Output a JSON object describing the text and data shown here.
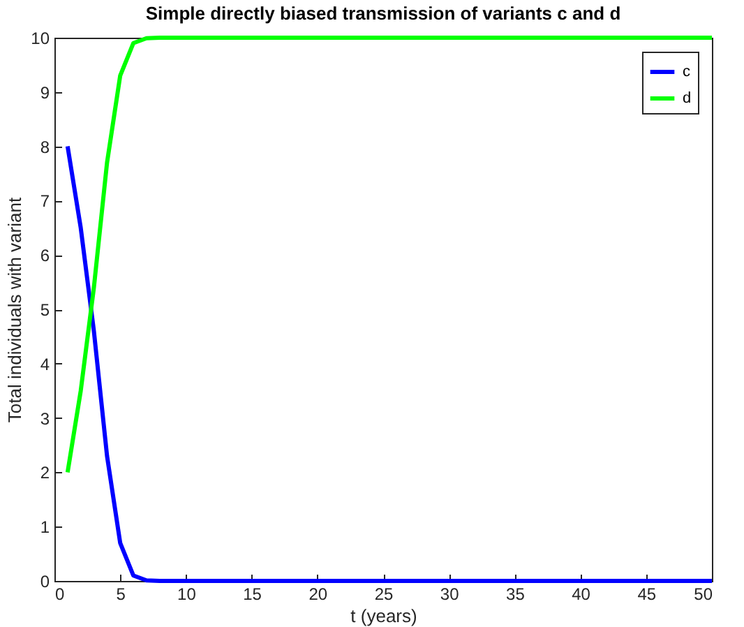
{
  "chart_data": {
    "type": "line",
    "title": "Simple directly biased transmission of variants c and d",
    "xlabel": "t (years)",
    "ylabel": "Total individuals with variant",
    "x": [
      1,
      2,
      3,
      4,
      5,
      6,
      7,
      8,
      9,
      10,
      11,
      12,
      13,
      14,
      15,
      16,
      17,
      18,
      19,
      20,
      21,
      22,
      23,
      24,
      25,
      26,
      27,
      28,
      29,
      30,
      31,
      32,
      33,
      34,
      35,
      36,
      37,
      38,
      39,
      40,
      41,
      42,
      43,
      44,
      45,
      46,
      47,
      48,
      49,
      50
    ],
    "series": [
      {
        "name": "c",
        "color": "#0000ff",
        "values": [
          8,
          6.5,
          4.6,
          2.3,
          0.7,
          0.1,
          0.01,
          0,
          0,
          0,
          0,
          0,
          0,
          0,
          0,
          0,
          0,
          0,
          0,
          0,
          0,
          0,
          0,
          0,
          0,
          0,
          0,
          0,
          0,
          0,
          0,
          0,
          0,
          0,
          0,
          0,
          0,
          0,
          0,
          0,
          0,
          0,
          0,
          0,
          0,
          0,
          0,
          0,
          0,
          0
        ]
      },
      {
        "name": "d",
        "color": "#00ff00",
        "values": [
          2,
          3.5,
          5.4,
          7.7,
          9.3,
          9.9,
          9.99,
          10,
          10,
          10,
          10,
          10,
          10,
          10,
          10,
          10,
          10,
          10,
          10,
          10,
          10,
          10,
          10,
          10,
          10,
          10,
          10,
          10,
          10,
          10,
          10,
          10,
          10,
          10,
          10,
          10,
          10,
          10,
          10,
          10,
          10,
          10,
          10,
          10,
          10,
          10,
          10,
          10,
          10,
          10
        ]
      }
    ],
    "xlim": [
      0,
      50
    ],
    "xticks": [
      0,
      5,
      10,
      15,
      20,
      25,
      30,
      35,
      40,
      45,
      50
    ],
    "ylim": [
      0,
      10
    ],
    "yticks": [
      0,
      1,
      2,
      3,
      4,
      5,
      6,
      7,
      8,
      9,
      10
    ],
    "grid": false,
    "legend": "top right",
    "marker": "none",
    "line_style": "solid"
  }
}
